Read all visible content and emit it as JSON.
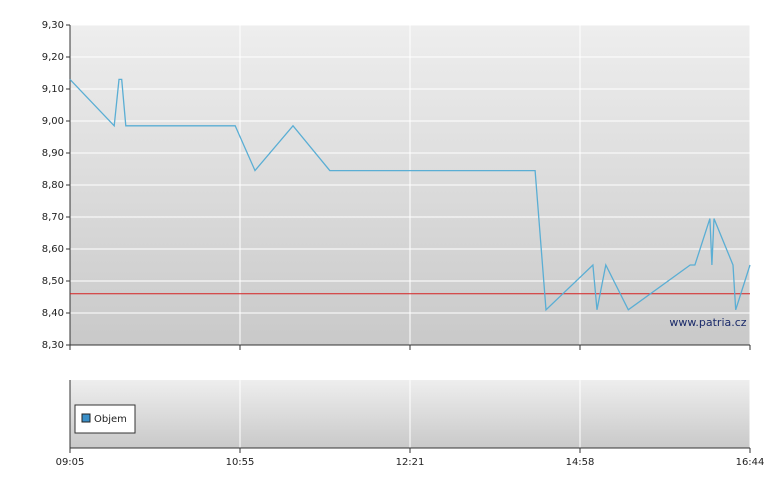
{
  "chart_data": {
    "type": "line",
    "x": [
      0,
      6.5,
      7.2,
      7.6,
      8.2,
      24.3,
      27.2,
      32.8,
      38.2,
      68.4,
      70,
      76.9,
      77.5,
      78.8,
      82.1,
      91.2,
      91.9,
      94.1,
      94.4,
      94.7,
      97.5,
      97.9,
      100
    ],
    "values": [
      9.13,
      8.985,
      9.13,
      9.13,
      8.985,
      8.985,
      8.845,
      8.985,
      8.845,
      8.845,
      8.41,
      8.55,
      8.41,
      8.55,
      8.41,
      8.55,
      8.55,
      8.695,
      8.55,
      8.695,
      8.55,
      8.41,
      8.55
    ],
    "color": "#5aaed4",
    "xlim": [
      0,
      100
    ],
    "xticks": [
      {
        "value": 0,
        "label": "09:05"
      },
      {
        "value": 25,
        "label": "10:55"
      },
      {
        "value": 50,
        "label": "12:21"
      },
      {
        "value": 75,
        "label": "14:58"
      },
      {
        "value": 100,
        "label": "16:44"
      }
    ],
    "ylim": [
      8.3,
      9.3
    ],
    "yticks": [
      {
        "value": 8.3,
        "label": "8,30"
      },
      {
        "value": 8.4,
        "label": "8,40"
      },
      {
        "value": 8.5,
        "label": "8,50"
      },
      {
        "value": 8.6,
        "label": "8,60"
      },
      {
        "value": 8.7,
        "label": "8,70"
      },
      {
        "value": 8.8,
        "label": "8,80"
      },
      {
        "value": 8.9,
        "label": "8,90"
      },
      {
        "value": 9.0,
        "label": "9,00"
      },
      {
        "value": 9.1,
        "label": "9,10"
      },
      {
        "value": 9.2,
        "label": "9,20"
      },
      {
        "value": 9.3,
        "label": "9,30"
      }
    ],
    "grid": true,
    "reference_line": {
      "value": 8.46,
      "color": "#d62020"
    },
    "watermark": "www.patria.cz",
    "volume_legend": {
      "name": "Objem",
      "color": "#3a8fc8"
    }
  }
}
